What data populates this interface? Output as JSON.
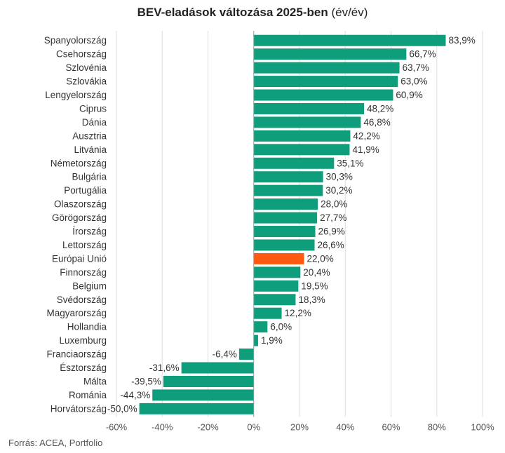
{
  "title": {
    "main": "BEV-eladások változása 2025-ben",
    "unit": "(év/év)"
  },
  "source": "Forrás: ACEA, Portfolio",
  "colors": {
    "bar": "#0e9e7b",
    "highlight": "#ff5a0f",
    "grid": "#dddddd",
    "zero_line": "#999999",
    "text": "#333333"
  },
  "chart_data": {
    "type": "bar",
    "orientation": "horizontal",
    "title": "BEV-eladások változása 2025-ben (év/év)",
    "xlabel": "",
    "ylabel": "",
    "xlim": [
      -60,
      100
    ],
    "x_ticks": [
      -60,
      -40,
      -20,
      0,
      20,
      40,
      60,
      80,
      100
    ],
    "x_tick_labels": [
      "-60%",
      "-40%",
      "-20%",
      "0%",
      "20%",
      "40%",
      "60%",
      "80%",
      "100%"
    ],
    "grid": true,
    "highlight_category": "Európai Unió",
    "categories": [
      "Spanyolország",
      "Csehország",
      "Szlovénia",
      "Szlovákia",
      "Lengyelország",
      "Ciprus",
      "Dánia",
      "Ausztria",
      "Litvánia",
      "Németország",
      "Bulgária",
      "Portugália",
      "Olaszország",
      "Görögország",
      "Írország",
      "Lettország",
      "Európai Unió",
      "Finnország",
      "Belgium",
      "Svédország",
      "Magyarország",
      "Hollandia",
      "Luxemburg",
      "Franciaország",
      "Észtország",
      "Málta",
      "Románia",
      "Horvátország"
    ],
    "values": [
      83.9,
      66.7,
      63.7,
      63.0,
      60.9,
      48.2,
      46.8,
      42.2,
      41.9,
      35.1,
      30.3,
      30.2,
      28.0,
      27.7,
      26.9,
      26.6,
      22.0,
      20.4,
      19.5,
      18.3,
      12.2,
      6.0,
      1.9,
      -6.4,
      -31.6,
      -39.5,
      -44.3,
      -50.0
    ],
    "value_labels": [
      "83,9%",
      "66,7%",
      "63,7%",
      "63,0%",
      "60,9%",
      "48,2%",
      "46,8%",
      "42,2%",
      "41,9%",
      "35,1%",
      "30,3%",
      "30,2%",
      "28,0%",
      "27,7%",
      "26,9%",
      "26,6%",
      "22,0%",
      "20,4%",
      "19,5%",
      "18,3%",
      "12,2%",
      "6,0%",
      "1,9%",
      "-6,4%",
      "-31,6%",
      "-39,5%",
      "-44,3%",
      "-50,0%"
    ]
  }
}
